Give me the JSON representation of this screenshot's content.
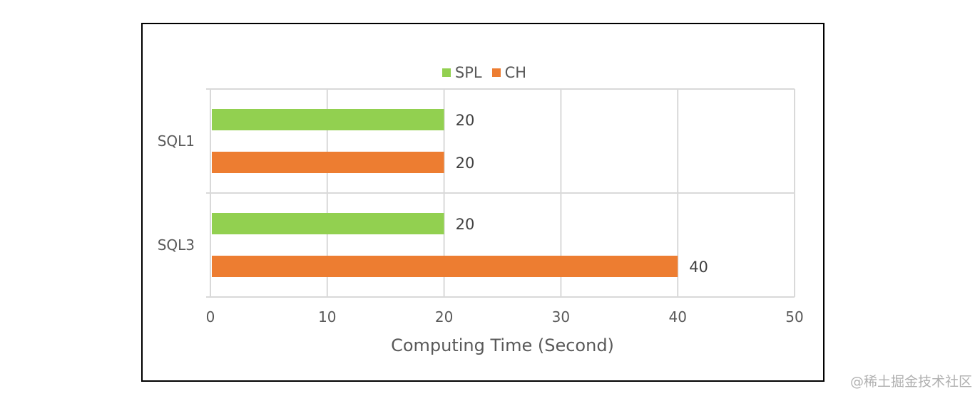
{
  "chart_data": {
    "type": "bar",
    "orientation": "horizontal",
    "categories": [
      "SQL1",
      "SQL3"
    ],
    "series": [
      {
        "name": "SPL",
        "values": [
          20,
          20
        ],
        "color": "#92D050"
      },
      {
        "name": "CH",
        "values": [
          20,
          40
        ],
        "color": "#ED7D31"
      }
    ],
    "xlabel": "Computing Time (Second)",
    "ylabel": "",
    "xlim": [
      0,
      50
    ],
    "xticks": [
      0,
      10,
      20,
      30,
      40,
      50
    ],
    "grid": true,
    "legend": "top-center",
    "data_labels": true
  },
  "watermark": "@稀土掘金技术社区"
}
